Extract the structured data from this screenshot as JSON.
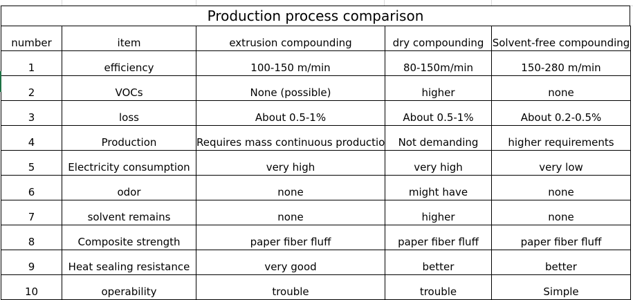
{
  "title": "Production process comparison",
  "headers": [
    "number",
    "item",
    "extrusion compounding",
    "dry compounding",
    "Solvent-free compounding"
  ],
  "rows": [
    [
      "1",
      "efficiency",
      "100-150 m/min",
      "80-150m/min",
      "150-280 m/min"
    ],
    [
      "2",
      "VOCs",
      "None (possible)",
      "higher",
      "none"
    ],
    [
      "3",
      "loss",
      "About 0.5-1%",
      "About 0.5-1%",
      "About 0.2-0.5%"
    ],
    [
      "4",
      "Production",
      "Requires mass continuous production",
      "Not demanding",
      "higher requirements"
    ],
    [
      "5",
      "Electricity consumption",
      "very high",
      "very high",
      "very low"
    ],
    [
      "6",
      "odor",
      "none",
      "might have",
      "none"
    ],
    [
      "7",
      "solvent remains",
      "none",
      "higher",
      "none"
    ],
    [
      "8",
      "Composite strength",
      "paper fiber fluff",
      "paper fiber fluff",
      "paper fiber fluff"
    ],
    [
      "9",
      "Heat sealing resistance",
      "very good",
      "better",
      "better"
    ],
    [
      "10",
      "operability",
      "trouble",
      "trouble",
      "Simple"
    ]
  ]
}
